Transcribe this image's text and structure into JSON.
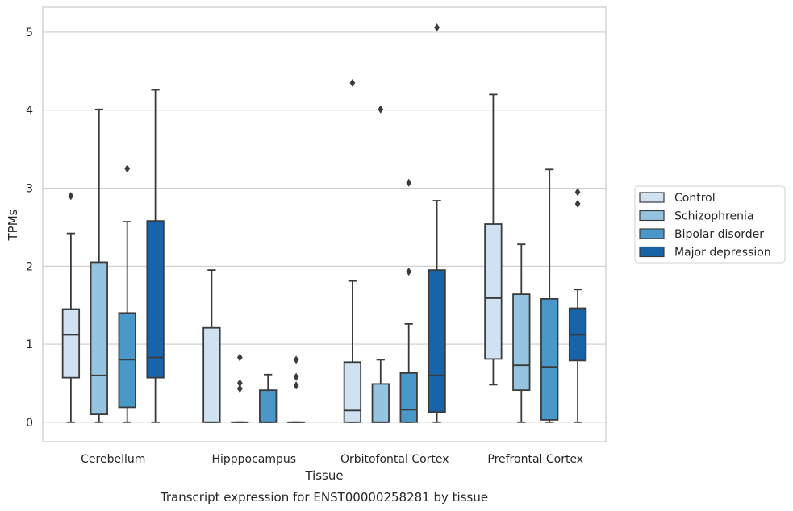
{
  "chart_data": {
    "type": "box",
    "title": "",
    "caption": "Transcript expression for ENST00000258281 by tissue",
    "xlabel": "Tissue",
    "ylabel": "TPMs",
    "ylim": [
      -0.25,
      5.32
    ],
    "yticks": [
      0,
      1,
      2,
      3,
      4,
      5
    ],
    "grid": true,
    "legend_position": "right",
    "categories": [
      "Cerebellum",
      "Hipppocampus",
      "Orbitofontal Cortex",
      "Prefrontal Cortex"
    ],
    "series": [
      {
        "name": "Control",
        "color": "#d0e1f2",
        "boxes": [
          {
            "whislo": 0,
            "q1": 0.57,
            "med": 1.12,
            "q3": 1.45,
            "whishi": 2.42,
            "fliers": [
              2.9
            ]
          },
          {
            "whislo": 0,
            "q1": 0,
            "med": 0,
            "q3": 1.21,
            "whishi": 1.95,
            "fliers": []
          },
          {
            "whislo": 0,
            "q1": 0,
            "med": 0.15,
            "q3": 0.77,
            "whishi": 1.81,
            "fliers": [
              4.35
            ]
          },
          {
            "whislo": 0.48,
            "q1": 0.81,
            "med": 1.59,
            "q3": 2.54,
            "whishi": 4.2,
            "fliers": []
          }
        ]
      },
      {
        "name": "Schizophrenia",
        "color": "#94c4df",
        "boxes": [
          {
            "whislo": 0,
            "q1": 0.1,
            "med": 0.6,
            "q3": 2.05,
            "whishi": 4.01,
            "fliers": []
          },
          {
            "whislo": 0,
            "q1": 0,
            "med": 0,
            "q3": 0,
            "whishi": 0,
            "fliers": [
              0.43,
              0.5,
              0.83
            ]
          },
          {
            "whislo": 0,
            "q1": 0,
            "med": 0,
            "q3": 0.49,
            "whishi": 0.8,
            "fliers": [
              4.01
            ]
          },
          {
            "whislo": 0,
            "q1": 0.41,
            "med": 0.73,
            "q3": 1.64,
            "whishi": 2.28,
            "fliers": []
          }
        ]
      },
      {
        "name": "Bipolar disorder",
        "color": "#4a98c9",
        "boxes": [
          {
            "whislo": 0,
            "q1": 0.19,
            "med": 0.8,
            "q3": 1.4,
            "whishi": 2.57,
            "fliers": [
              3.25
            ]
          },
          {
            "whislo": 0,
            "q1": 0,
            "med": 0,
            "q3": 0.41,
            "whishi": 0.61,
            "fliers": []
          },
          {
            "whislo": 0,
            "q1": 0,
            "med": 0.16,
            "q3": 0.63,
            "whishi": 1.26,
            "fliers": [
              1.93,
              3.07
            ]
          },
          {
            "whislo": 0,
            "q1": 0.03,
            "med": 0.71,
            "q3": 1.58,
            "whishi": 3.24,
            "fliers": []
          }
        ]
      },
      {
        "name": "Major depression",
        "color": "#1764ab",
        "boxes": [
          {
            "whislo": 0,
            "q1": 0.57,
            "med": 0.83,
            "q3": 2.58,
            "whishi": 4.26,
            "fliers": []
          },
          {
            "whislo": 0,
            "q1": 0,
            "med": 0,
            "q3": 0,
            "whishi": 0,
            "fliers": [
              0.47,
              0.58,
              0.8
            ]
          },
          {
            "whislo": 0,
            "q1": 0.13,
            "med": 0.6,
            "q3": 1.95,
            "whishi": 2.84,
            "fliers": [
              5.06
            ]
          },
          {
            "whislo": 0,
            "q1": 0.79,
            "med": 1.12,
            "q3": 1.46,
            "whishi": 1.7,
            "fliers": [
              2.8,
              2.95
            ]
          }
        ]
      }
    ]
  }
}
